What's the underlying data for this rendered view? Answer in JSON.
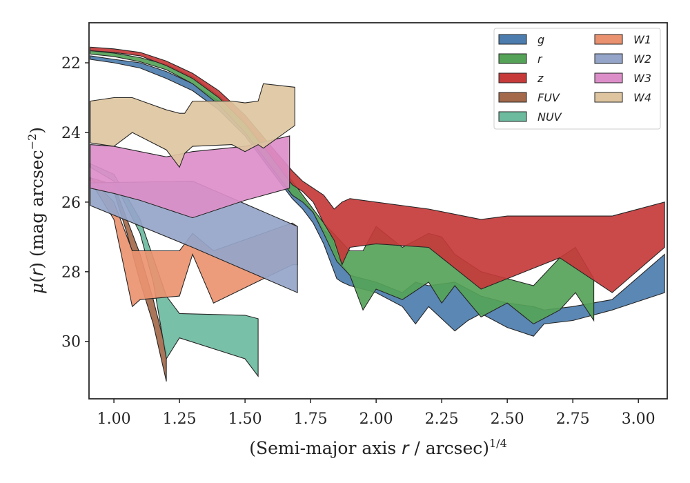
{
  "chart_data": {
    "type": "area",
    "xlabel": "(Semi-major axis r / arcsec)^1/4",
    "ylabel": "μ(r) (mag arcsec^−2)",
    "xlim": [
      0.905,
      3.11
    ],
    "ylim": [
      31.65,
      20.85
    ],
    "y_inverted": true,
    "xticks": [
      "1.00",
      "1.25",
      "1.50",
      "1.75",
      "2.00",
      "2.25",
      "2.50",
      "2.75",
      "3.00"
    ],
    "yticks": [
      "22",
      "24",
      "26",
      "28",
      "30"
    ],
    "grid": false,
    "legend_position": "top-right",
    "series": [
      {
        "name": "g",
        "color": "#4c7dae",
        "x": [
          0.91,
          1.0,
          1.1,
          1.2,
          1.3,
          1.4,
          1.5,
          1.6,
          1.68,
          1.72,
          1.76,
          1.8,
          1.83,
          1.85,
          1.87,
          1.9,
          2.0,
          2.1,
          2.15,
          2.2,
          2.3,
          2.35,
          2.4,
          2.5,
          2.6,
          2.64,
          2.75,
          2.9,
          3.1
        ],
        "lower": [
          21.8,
          21.9,
          22.0,
          22.25,
          22.6,
          23.1,
          23.8,
          24.7,
          25.5,
          25.9,
          26.3,
          26.8,
          27.0,
          27.5,
          27.8,
          28.1,
          28.3,
          28.6,
          28.3,
          28.4,
          28.3,
          28.5,
          28.7,
          28.9,
          29.0,
          29.1,
          29.0,
          28.8,
          27.5
        ],
        "upper": [
          21.9,
          22.0,
          22.15,
          22.45,
          22.8,
          23.35,
          24.1,
          25.1,
          25.9,
          26.2,
          26.6,
          27.2,
          27.8,
          28.2,
          28.3,
          28.4,
          28.6,
          29.0,
          29.5,
          29.0,
          29.7,
          29.4,
          29.2,
          29.6,
          29.85,
          29.5,
          29.4,
          29.1,
          28.6
        ]
      },
      {
        "name": "r",
        "color": "#55a358",
        "x": [
          0.91,
          1.0,
          1.1,
          1.2,
          1.3,
          1.4,
          1.5,
          1.6,
          1.68,
          1.72,
          1.76,
          1.8,
          1.85,
          1.9,
          1.95,
          2.0,
          2.1,
          2.2,
          2.25,
          2.3,
          2.4,
          2.5,
          2.6,
          2.7,
          2.76,
          2.83
        ],
        "lower": [
          21.65,
          21.72,
          21.85,
          22.05,
          22.4,
          22.95,
          23.7,
          24.6,
          25.4,
          25.8,
          26.2,
          26.6,
          27.0,
          27.4,
          27.4,
          26.7,
          27.3,
          26.9,
          27.0,
          27.5,
          28.0,
          28.2,
          28.4,
          27.6,
          27.3,
          28.2
        ],
        "upper": [
          21.75,
          21.82,
          21.97,
          22.2,
          22.6,
          23.2,
          24.0,
          25.0,
          25.8,
          26.0,
          26.3,
          26.9,
          27.7,
          28.1,
          29.1,
          28.5,
          28.8,
          28.3,
          28.9,
          28.4,
          29.3,
          28.9,
          29.5,
          29.1,
          28.6,
          29.4
        ]
      },
      {
        "name": "z",
        "color": "#c63a3a",
        "x": [
          0.91,
          1.0,
          1.1,
          1.2,
          1.3,
          1.4,
          1.5,
          1.6,
          1.68,
          1.72,
          1.76,
          1.8,
          1.84,
          1.87,
          1.9,
          2.0,
          2.2,
          2.4,
          2.5,
          2.7,
          2.9,
          3.1
        ],
        "lower": [
          21.55,
          21.6,
          21.7,
          21.95,
          22.3,
          22.8,
          23.5,
          24.4,
          25.1,
          25.4,
          25.6,
          25.8,
          26.2,
          26.0,
          25.9,
          26.0,
          26.2,
          26.5,
          26.4,
          26.4,
          26.4,
          26.0
        ],
        "upper": [
          21.65,
          21.7,
          21.8,
          22.08,
          22.45,
          23.0,
          23.75,
          24.7,
          25.5,
          25.7,
          26.0,
          26.6,
          27.1,
          27.8,
          27.3,
          27.2,
          27.3,
          28.5,
          28.2,
          27.6,
          28.6,
          27.3
        ]
      },
      {
        "name": "FUV",
        "color": "#a3694a",
        "x": [
          0.91,
          1.0,
          1.05,
          1.1,
          1.15,
          1.2
        ],
        "lower": [
          25.3,
          25.5,
          26.5,
          27.5,
          28.8,
          30.3
        ],
        "upper": [
          25.4,
          25.7,
          26.9,
          28.3,
          29.5,
          31.15
        ]
      },
      {
        "name": "NUV",
        "color": "#6dbb9f",
        "x": [
          0.91,
          1.0,
          1.1,
          1.15,
          1.2,
          1.25,
          1.5,
          1.55
        ],
        "lower": [
          24.9,
          25.2,
          26.5,
          27.6,
          28.7,
          29.2,
          29.25,
          29.35
        ],
        "upper": [
          25.0,
          25.4,
          26.9,
          28.3,
          30.5,
          29.9,
          30.5,
          31.0
        ]
      },
      {
        "name": "W1",
        "color": "#ea9270",
        "x": [
          0.91,
          1.0,
          1.07,
          1.1,
          1.25,
          1.3,
          1.38,
          1.68,
          1.7
        ],
        "lower": [
          25.3,
          26.0,
          27.4,
          27.4,
          27.4,
          26.9,
          27.4,
          26.6,
          26.7
        ],
        "upper": [
          25.4,
          26.5,
          29.0,
          28.8,
          28.7,
          27.5,
          28.9,
          27.8,
          27.8
        ]
      },
      {
        "name": "W2",
        "color": "#95a5c9",
        "x": [
          0.91,
          1.3,
          1.7
        ],
        "lower": [
          25.45,
          25.4,
          26.7
        ],
        "upper": [
          26.1,
          27.3,
          28.6
        ]
      },
      {
        "name": "W3",
        "color": "#dc8ec9",
        "x": [
          0.91,
          1.0,
          1.1,
          1.2,
          1.3,
          1.5,
          1.67
        ],
        "lower": [
          24.35,
          24.4,
          24.55,
          24.7,
          24.55,
          24.4,
          24.1
        ],
        "upper": [
          25.6,
          25.75,
          25.95,
          26.2,
          26.45,
          25.95,
          25.6
        ]
      },
      {
        "name": "W4",
        "color": "#dec59f",
        "x": [
          0.91,
          1.0,
          1.07,
          1.2,
          1.25,
          1.27,
          1.3,
          1.45,
          1.5,
          1.55,
          1.57,
          1.69
        ],
        "lower": [
          23.1,
          23.0,
          23.0,
          23.35,
          23.45,
          23.45,
          23.1,
          23.1,
          23.15,
          23.1,
          22.6,
          22.7
        ],
        "upper": [
          24.3,
          24.4,
          24.0,
          24.5,
          25.0,
          24.6,
          24.4,
          24.35,
          24.55,
          24.35,
          24.45,
          23.8
        ]
      }
    ]
  }
}
